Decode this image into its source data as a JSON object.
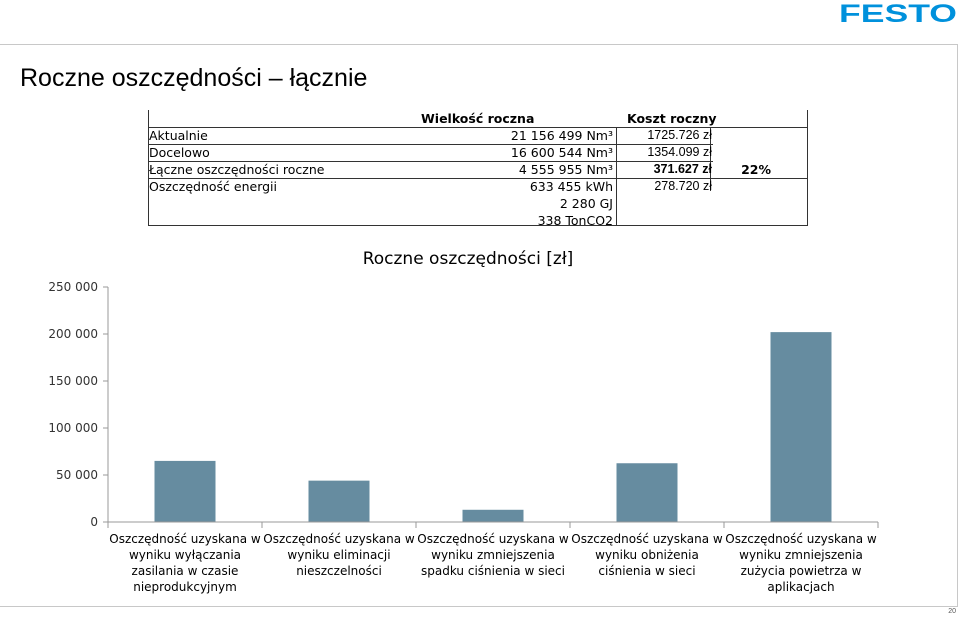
{
  "header": {
    "logo_text": "FESTO"
  },
  "slide": {
    "title": "Roczne oszczędności – łącznie",
    "page_number": "20"
  },
  "table": {
    "headers": [
      "",
      "Wielkość roczna",
      "Koszt roczny",
      ""
    ],
    "rows": [
      {
        "label": "Aktualnie",
        "amount": [
          "21 156 499 Nm³"
        ],
        "cost": "1725.726 zł",
        "extra": ""
      },
      {
        "label": "Docelowo",
        "amount": [
          "16 600 544 Nm³"
        ],
        "cost": "1354.099 zł",
        "extra": ""
      },
      {
        "label": "Łączne oszczędności roczne",
        "amount": [
          "4 555 955 Nm³"
        ],
        "cost": "371.627 zł",
        "extra": "22%"
      },
      {
        "label": "Oszczędność energii",
        "amount": [
          "633 455 kWh",
          "2 280 GJ",
          "338 TonCO2"
        ],
        "cost": "278.720 zł",
        "extra": ""
      }
    ]
  },
  "chart_data": {
    "type": "bar",
    "title": "Roczne oszczędności [zł]",
    "categories": [
      "Oszczędność uzyskana w wyniku wyłączania zasilania w czasie nieprodukcyjnym",
      "Oszczędność uzyskana w wyniku eliminacji nieszczelności",
      "Oszczędność uzyskana w wyniku zmniejszenia spadku ciśnienia w sieci",
      "Oszczędność uzyskana w wyniku obniżenia ciśnienia w sieci",
      "Oszczędność uzyskana w wyniku zmniejszenia zużycia powietrza w aplikacjach"
    ],
    "category_lines": [
      [
        "Oszczędność uzyskana w",
        "wyniku wyłączania",
        "zasilania w czasie",
        "nieprodukcyjnym"
      ],
      [
        "Oszczędność uzyskana w",
        "wyniku eliminacji",
        "nieszczelności"
      ],
      [
        "Oszczędność uzyskana w",
        "wyniku zmniejszenia",
        "spadku ciśnienia w sieci"
      ],
      [
        "Oszczędność uzyskana w",
        "wyniku obniżenia",
        "ciśnienia w sieci"
      ],
      [
        "Oszczędność uzyskana w",
        "wyniku zmniejszenia",
        "zużycia powietrza w",
        "aplikacjach"
      ]
    ],
    "values": [
      65000,
      44000,
      13000,
      62500,
      202000
    ],
    "ylim": [
      0,
      250000
    ],
    "yticks": [
      0,
      50000,
      100000,
      150000,
      200000,
      250000
    ],
    "ytick_labels": [
      "0",
      "50 000",
      "100 000",
      "150 000",
      "200 000",
      "250 000"
    ],
    "bar_color": "#668ca0",
    "grid": false,
    "legend": "none"
  }
}
